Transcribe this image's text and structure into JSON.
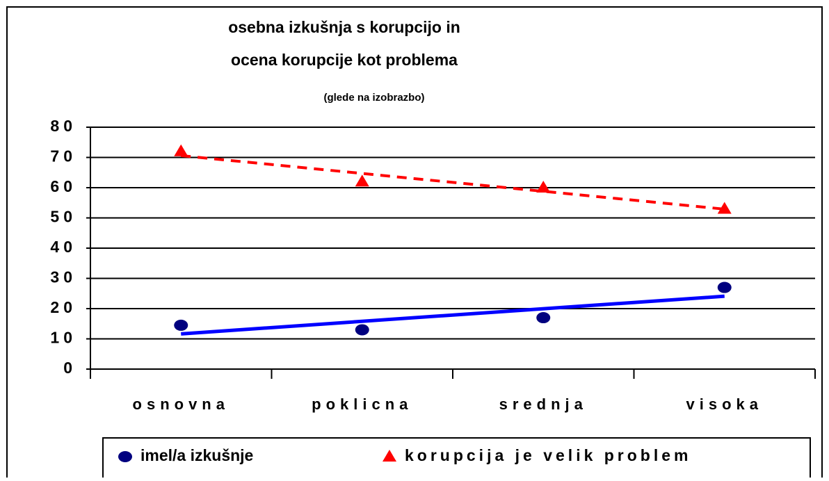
{
  "chart_data": {
    "type": "scatter",
    "title": [
      "osebna izkušnja s korupcijo in",
      "ocena korupcije kot problema"
    ],
    "subtitle": "(glede na izobrazbo)",
    "categories": [
      "osnovna",
      "poklicna",
      "srednja",
      "visoka"
    ],
    "series": [
      {
        "name": "imel/a izkušnje",
        "color": "#00007f",
        "marker": "circle",
        "trendline": "solid",
        "trendline_color": "#0000ff",
        "values": [
          14.5,
          13,
          17,
          27
        ]
      },
      {
        "name": "korupcija je velik problem",
        "color": "#ff0000",
        "marker": "triangle",
        "trendline": "dashed",
        "trendline_color": "#ff0000",
        "values": [
          72,
          62,
          60,
          53
        ]
      }
    ],
    "ylim": [
      0,
      80
    ],
    "yticks": [
      0,
      10,
      20,
      30,
      40,
      50,
      60,
      70,
      80
    ],
    "grid": true,
    "legend": "bottom"
  }
}
